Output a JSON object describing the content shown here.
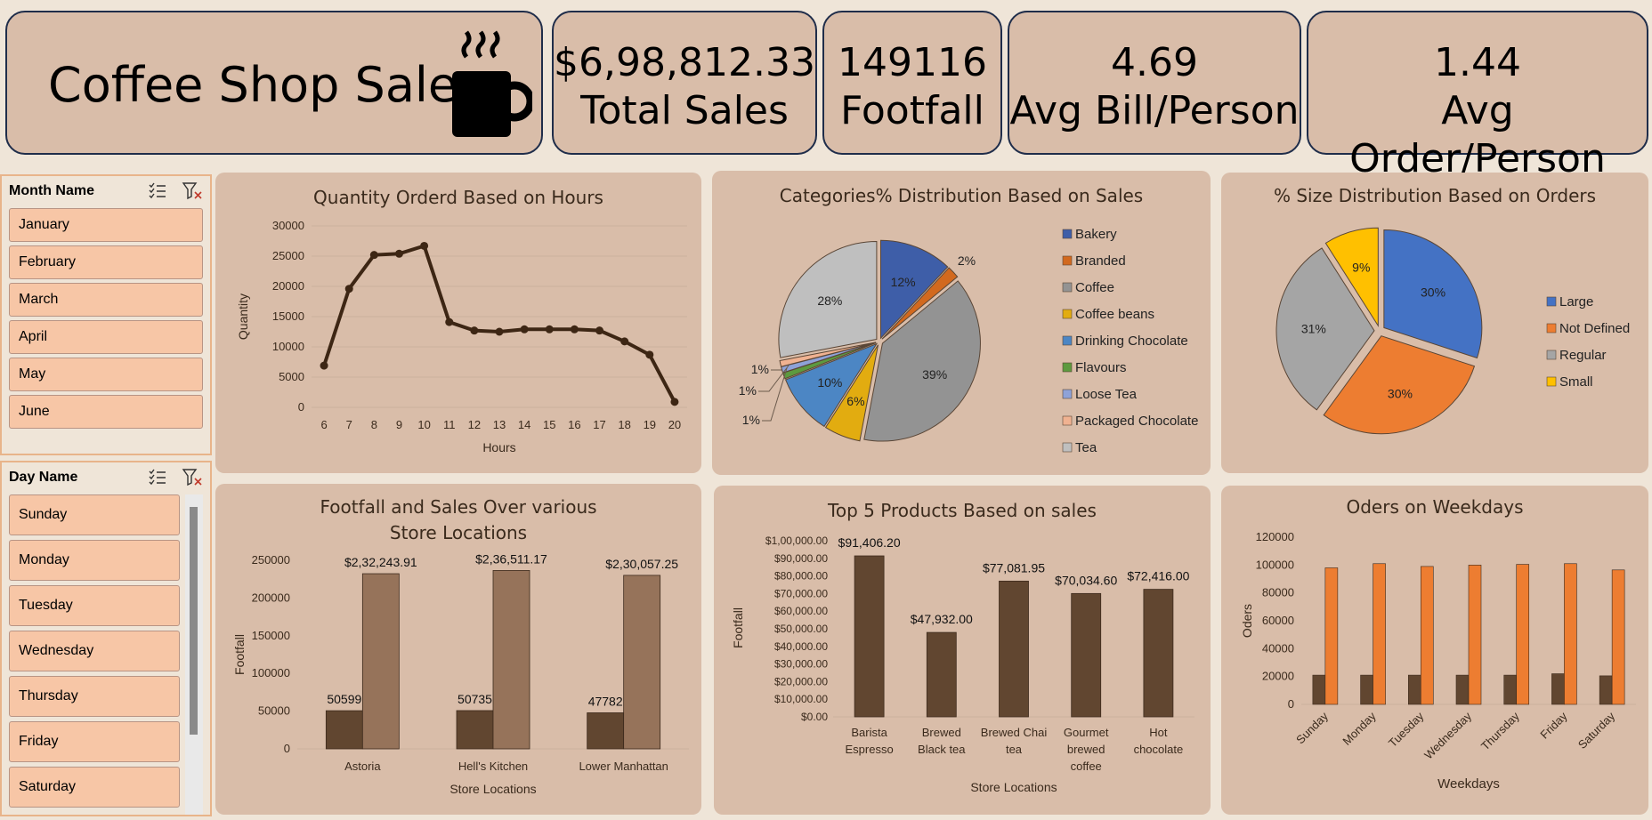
{
  "header": {
    "title": "Coffee Shop Sales",
    "kpis": [
      {
        "value": "$6,98,812.33",
        "label": "Total Sales"
      },
      {
        "value": "149116",
        "label": "Footfall"
      },
      {
        "value": "4.69",
        "label": "Avg Bill/Person"
      },
      {
        "value": "1.44",
        "label": "Avg Order/Person"
      }
    ]
  },
  "month_slicer": {
    "title": "Month Name",
    "items": [
      "January",
      "February",
      "March",
      "April",
      "May",
      "June"
    ]
  },
  "day_slicer": {
    "title": "Day Name",
    "items": [
      "Sunday",
      "Monday",
      "Tuesday",
      "Wednesday",
      "Thursday",
      "Friday",
      "Saturday"
    ]
  },
  "chart_data": [
    {
      "type": "line",
      "title": "Quantity Orderd Based on Hours",
      "xlabel": "Hours",
      "ylabel": "Quantity",
      "x": [
        6,
        7,
        8,
        9,
        10,
        11,
        12,
        13,
        14,
        15,
        16,
        17,
        18,
        19,
        20
      ],
      "values": [
        6900,
        19600,
        25200,
        25400,
        26700,
        14100,
        12700,
        12500,
        12900,
        12900,
        12900,
        12700,
        10900,
        8700,
        900
      ],
      "ylim": [
        0,
        30000
      ],
      "yticks": [
        0,
        5000,
        10000,
        15000,
        20000,
        25000,
        30000
      ],
      "color": "#3d2614"
    },
    {
      "type": "pie",
      "title": "Categories% Distribution Based on Sales",
      "categories": [
        "Bakery",
        "Branded",
        "Coffee",
        "Coffee beans",
        "Drinking Chocolate",
        "Flavours",
        "Loose Tea",
        "Packaged Chocolate",
        "Tea"
      ],
      "values": [
        12,
        2,
        39,
        6,
        10,
        1,
        1,
        1,
        28
      ],
      "labels": [
        "12%",
        "2%",
        "39%",
        "6%",
        "10%",
        "1%",
        "1%",
        "1%",
        "28%"
      ],
      "colors": [
        "#3e5ea8",
        "#d2691e",
        "#939393",
        "#e2ac10",
        "#4c86c4",
        "#5d9a3f",
        "#8ea2d8",
        "#f0b291",
        "#bfbfbf"
      ],
      "legend": "right"
    },
    {
      "type": "pie",
      "title": "% Size Distribution Based on Orders",
      "categories": [
        "Large",
        "Not Defined",
        "Regular",
        "Small"
      ],
      "values": [
        30,
        30,
        31,
        9
      ],
      "labels": [
        "30%",
        "30%",
        "31%",
        "9%"
      ],
      "colors": [
        "#4472c4",
        "#ed7d31",
        "#a5a5a5",
        "#ffc000"
      ],
      "legend": "right"
    },
    {
      "type": "bar",
      "title": "Footfall and Sales Over various Store Locations",
      "xlabel": "Store Locations",
      "ylabel": "Footfall",
      "categories": [
        "Astoria",
        "Hell's Kitchen",
        "Lower Manhattan"
      ],
      "series": [
        {
          "values": [
            50599,
            50735,
            47782
          ],
          "labels": [
            "50599",
            "50735",
            "47782"
          ],
          "color": "#614630"
        },
        {
          "values": [
            232243.91,
            236511.17,
            230057.25
          ],
          "labels": [
            "$2,32,243.91",
            "$2,36,511.17",
            "$2,30,057.25"
          ],
          "color": "#96735a"
        }
      ],
      "ylim": [
        0,
        250000
      ],
      "yticks": [
        0,
        50000,
        100000,
        150000,
        200000,
        250000
      ]
    },
    {
      "type": "bar",
      "title": "Top 5 Products Based on sales",
      "xlabel": "Store Locations",
      "ylabel": "Footfall",
      "categories": [
        "Barista Espresso",
        "Brewed Black tea",
        "Brewed Chai tea",
        "Gourmet brewed coffee",
        "Hot chocolate"
      ],
      "category_lines": [
        [
          "Barista",
          "Espresso"
        ],
        [
          "Brewed",
          "Black tea"
        ],
        [
          "Brewed Chai",
          "tea"
        ],
        [
          "Gourmet",
          "brewed",
          "coffee"
        ],
        [
          "Hot",
          "chocolate"
        ]
      ],
      "values": [
        91406.2,
        47932.0,
        77081.95,
        70034.6,
        72416.0
      ],
      "labels": [
        "$91,406.20",
        "$47,932.00",
        "$77,081.95",
        "$70,034.60",
        "$72,416.00"
      ],
      "ylim": [
        0,
        100000
      ],
      "yticks": [
        "$0.00",
        "$10,000.00",
        "$20,000.00",
        "$30,000.00",
        "$40,000.00",
        "$50,000.00",
        "$60,000.00",
        "$70,000.00",
        "$80,000.00",
        "$90,000.00",
        "$1,00,000.00"
      ],
      "color": "#614630"
    },
    {
      "type": "bar",
      "title": "Oders on Weekdays",
      "xlabel": "Weekdays",
      "ylabel": "Oders",
      "categories": [
        "Sunday",
        "Monday",
        "Tuesday",
        "Wednesday",
        "Thursday",
        "Friday",
        "Saturday"
      ],
      "series": [
        {
          "values": [
            21000,
            21000,
            21000,
            21000,
            21000,
            22000,
            20500
          ],
          "color": "#614630"
        },
        {
          "values": [
            98000,
            101000,
            99000,
            100000,
            100500,
            101000,
            96500
          ],
          "color": "#ed7d31"
        }
      ],
      "ylim": [
        0,
        120000
      ],
      "yticks": [
        0,
        20000,
        40000,
        60000,
        80000,
        100000,
        120000
      ]
    }
  ]
}
